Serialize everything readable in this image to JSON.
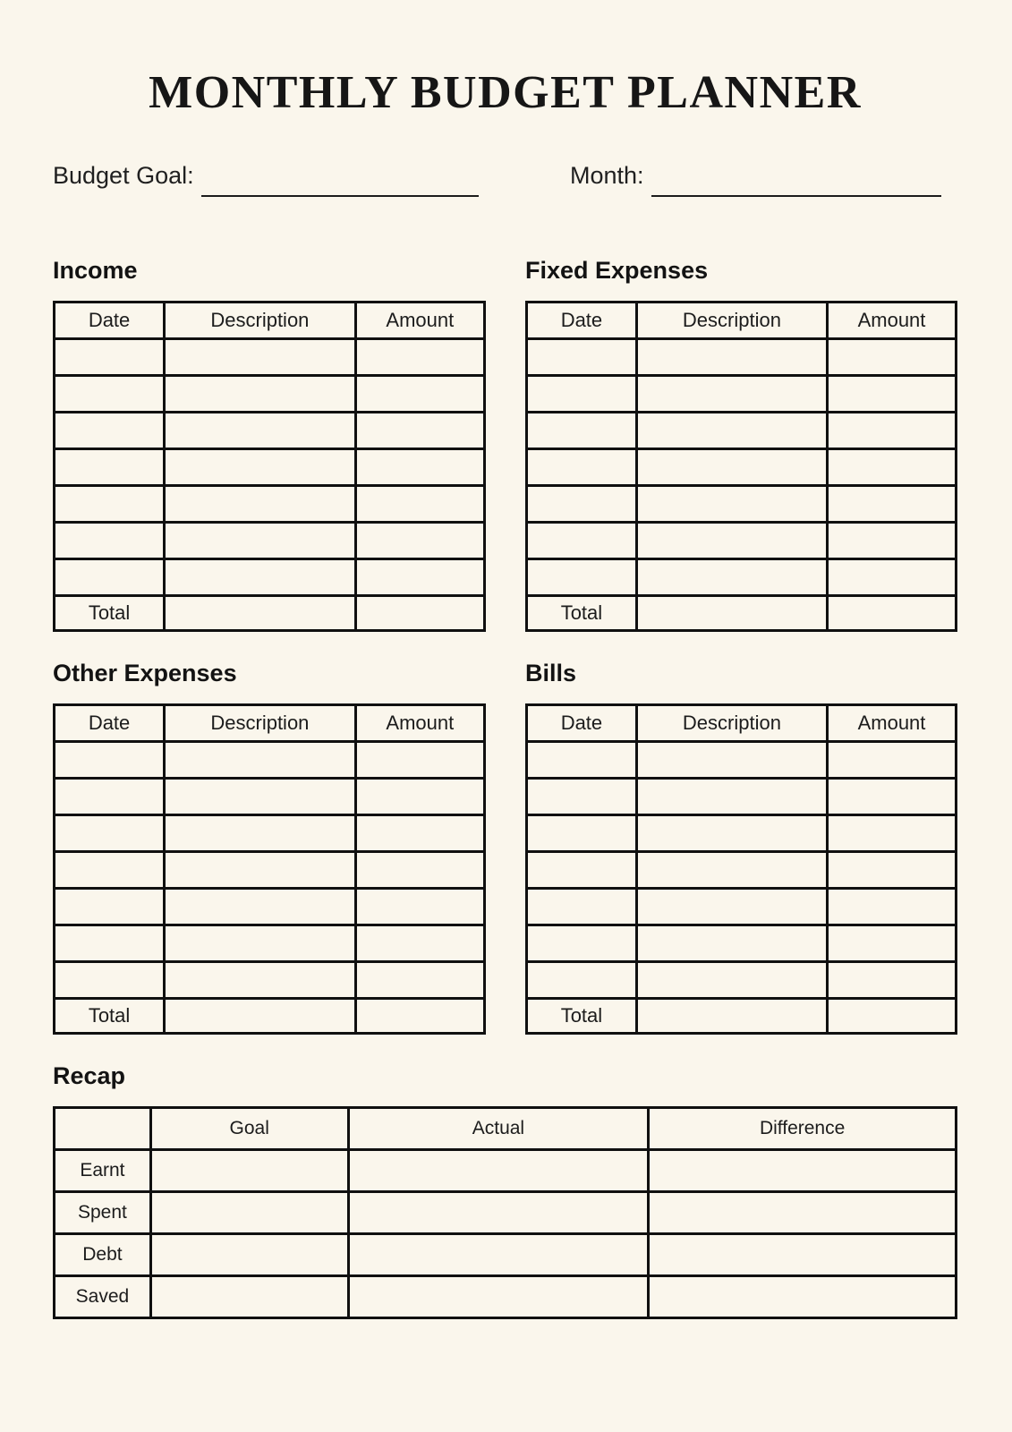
{
  "title": "MONTHLY BUDGET PLANNER",
  "fields": {
    "budget_goal_label": "Budget Goal:",
    "budget_goal_value": "",
    "month_label": "Month:",
    "month_value": ""
  },
  "sections": [
    {
      "id": "income",
      "heading": "Income",
      "columns": [
        "Date",
        "Description",
        "Amount"
      ],
      "empty_rows": 7,
      "total_label": "Total"
    },
    {
      "id": "fixed-expenses",
      "heading": "Fixed Expenses",
      "columns": [
        "Date",
        "Description",
        "Amount"
      ],
      "empty_rows": 7,
      "total_label": "Total"
    },
    {
      "id": "other-expenses",
      "heading": "Other Expenses",
      "columns": [
        "Date",
        "Description",
        "Amount"
      ],
      "empty_rows": 7,
      "total_label": "Total"
    },
    {
      "id": "bills",
      "heading": "Bills",
      "columns": [
        "Date",
        "Description",
        "Amount"
      ],
      "empty_rows": 7,
      "total_label": "Total"
    }
  ],
  "recap": {
    "heading": "Recap",
    "columns": [
      "",
      "Goal",
      "Actual",
      "Difference"
    ],
    "rows": [
      {
        "label": "Earnt",
        "goal": "",
        "actual": "",
        "difference": ""
      },
      {
        "label": "Spent",
        "goal": "",
        "actual": "",
        "difference": ""
      },
      {
        "label": "Debt",
        "goal": "",
        "actual": "",
        "difference": ""
      },
      {
        "label": "Saved",
        "goal": "",
        "actual": "",
        "difference": ""
      }
    ]
  },
  "colors": {
    "background": "#faf6ec",
    "border": "#101010",
    "text": "#1a1a1a"
  }
}
